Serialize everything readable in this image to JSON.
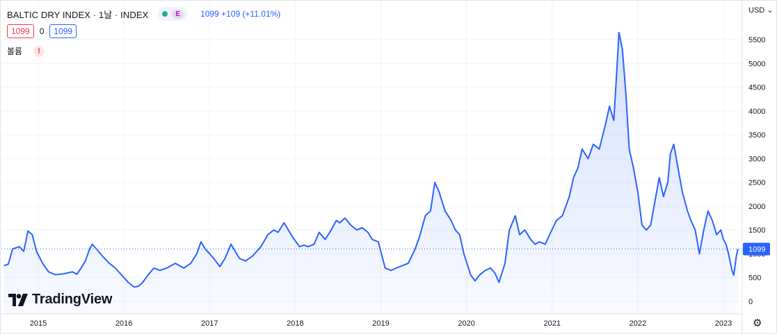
{
  "header": {
    "title": "BALTIC DRY INDEX · 1날 · INDEX",
    "badge_letter": "E",
    "price_info": "1099 +109 (+11.01%)"
  },
  "ohlc_row": {
    "left_box": "1099",
    "middle": "0",
    "right_box": "1099"
  },
  "volume_row": {
    "label": "볼륨",
    "warning": "!"
  },
  "axis": {
    "currency": "USD",
    "currency_caret": "⌄"
  },
  "settings_icon": "gear-icon",
  "brand": {
    "name": "TradingView",
    "icon": "tradingview-logo-icon"
  },
  "last_price_tag": "1099",
  "colors": {
    "line": "#2962ff",
    "fill": "#2962ff",
    "grid": "#f0f3fa",
    "tag": "#2962ff"
  },
  "chart_data": {
    "type": "area",
    "title": "BALTIC DRY INDEX",
    "ylim": [
      0,
      5800
    ],
    "yticks": [
      0,
      500,
      1000,
      1500,
      2000,
      2500,
      3000,
      3500,
      4000,
      4500,
      5000,
      5500
    ],
    "xticks": [
      "2015",
      "2016",
      "2017",
      "2018",
      "2019",
      "2020",
      "2021",
      "2022",
      "2023"
    ],
    "grid": true,
    "series": [
      {
        "values": [
          [
            2014.6,
            750
          ],
          [
            2014.65,
            780
          ],
          [
            2014.7,
            1100
          ],
          [
            2014.78,
            1150
          ],
          [
            2014.83,
            1050
          ],
          [
            2014.88,
            1480
          ],
          [
            2014.93,
            1400
          ],
          [
            2014.98,
            1050
          ],
          [
            2015.05,
            800
          ],
          [
            2015.12,
            620
          ],
          [
            2015.2,
            560
          ],
          [
            2015.3,
            580
          ],
          [
            2015.4,
            620
          ],
          [
            2015.45,
            570
          ],
          [
            2015.5,
            700
          ],
          [
            2015.55,
            850
          ],
          [
            2015.6,
            1100
          ],
          [
            2015.63,
            1200
          ],
          [
            2015.68,
            1100
          ],
          [
            2015.75,
            950
          ],
          [
            2015.83,
            800
          ],
          [
            2015.9,
            700
          ],
          [
            2015.97,
            560
          ],
          [
            2016.05,
            400
          ],
          [
            2016.12,
            300
          ],
          [
            2016.17,
            320
          ],
          [
            2016.22,
            400
          ],
          [
            2016.28,
            550
          ],
          [
            2016.35,
            700
          ],
          [
            2016.42,
            650
          ],
          [
            2016.5,
            700
          ],
          [
            2016.6,
            800
          ],
          [
            2016.7,
            700
          ],
          [
            2016.78,
            800
          ],
          [
            2016.85,
            1000
          ],
          [
            2016.9,
            1250
          ],
          [
            2016.95,
            1100
          ],
          [
            2017.05,
            900
          ],
          [
            2017.12,
            730
          ],
          [
            2017.18,
            900
          ],
          [
            2017.25,
            1200
          ],
          [
            2017.3,
            1050
          ],
          [
            2017.35,
            900
          ],
          [
            2017.42,
            850
          ],
          [
            2017.5,
            950
          ],
          [
            2017.6,
            1150
          ],
          [
            2017.68,
            1400
          ],
          [
            2017.75,
            1500
          ],
          [
            2017.8,
            1450
          ],
          [
            2017.87,
            1650
          ],
          [
            2017.92,
            1500
          ],
          [
            2017.97,
            1350
          ],
          [
            2018.05,
            1150
          ],
          [
            2018.1,
            1180
          ],
          [
            2018.15,
            1150
          ],
          [
            2018.22,
            1200
          ],
          [
            2018.28,
            1450
          ],
          [
            2018.35,
            1300
          ],
          [
            2018.42,
            1500
          ],
          [
            2018.48,
            1700
          ],
          [
            2018.52,
            1650
          ],
          [
            2018.58,
            1750
          ],
          [
            2018.65,
            1600
          ],
          [
            2018.72,
            1500
          ],
          [
            2018.78,
            1550
          ],
          [
            2018.85,
            1450
          ],
          [
            2018.9,
            1300
          ],
          [
            2018.97,
            1250
          ],
          [
            2019.05,
            700
          ],
          [
            2019.12,
            650
          ],
          [
            2019.18,
            700
          ],
          [
            2019.25,
            750
          ],
          [
            2019.32,
            800
          ],
          [
            2019.4,
            1100
          ],
          [
            2019.45,
            1350
          ],
          [
            2019.52,
            1800
          ],
          [
            2019.58,
            1900
          ],
          [
            2019.63,
            2500
          ],
          [
            2019.68,
            2300
          ],
          [
            2019.75,
            1900
          ],
          [
            2019.82,
            1700
          ],
          [
            2019.87,
            1500
          ],
          [
            2019.92,
            1400
          ],
          [
            2019.97,
            1000
          ],
          [
            2020.05,
            550
          ],
          [
            2020.1,
            430
          ],
          [
            2020.15,
            550
          ],
          [
            2020.22,
            650
          ],
          [
            2020.28,
            700
          ],
          [
            2020.33,
            600
          ],
          [
            2020.38,
            400
          ],
          [
            2020.45,
            800
          ],
          [
            2020.5,
            1500
          ],
          [
            2020.57,
            1800
          ],
          [
            2020.62,
            1400
          ],
          [
            2020.68,
            1500
          ],
          [
            2020.75,
            1300
          ],
          [
            2020.8,
            1200
          ],
          [
            2020.85,
            1250
          ],
          [
            2020.92,
            1200
          ],
          [
            2020.97,
            1400
          ],
          [
            2021.05,
            1700
          ],
          [
            2021.12,
            1800
          ],
          [
            2021.2,
            2200
          ],
          [
            2021.25,
            2600
          ],
          [
            2021.3,
            2800
          ],
          [
            2021.35,
            3200
          ],
          [
            2021.42,
            3000
          ],
          [
            2021.48,
            3300
          ],
          [
            2021.55,
            3200
          ],
          [
            2021.62,
            3700
          ],
          [
            2021.67,
            4100
          ],
          [
            2021.72,
            3800
          ],
          [
            2021.76,
            5000
          ],
          [
            2021.78,
            5650
          ],
          [
            2021.82,
            5300
          ],
          [
            2021.86,
            4400
          ],
          [
            2021.9,
            3200
          ],
          [
            2021.95,
            2800
          ],
          [
            2022.0,
            2300
          ],
          [
            2022.05,
            1600
          ],
          [
            2022.1,
            1500
          ],
          [
            2022.15,
            1600
          ],
          [
            2022.2,
            2100
          ],
          [
            2022.25,
            2600
          ],
          [
            2022.3,
            2200
          ],
          [
            2022.35,
            2500
          ],
          [
            2022.38,
            3100
          ],
          [
            2022.42,
            3300
          ],
          [
            2022.47,
            2800
          ],
          [
            2022.52,
            2300
          ],
          [
            2022.58,
            1900
          ],
          [
            2022.62,
            1700
          ],
          [
            2022.67,
            1500
          ],
          [
            2022.72,
            1000
          ],
          [
            2022.77,
            1500
          ],
          [
            2022.82,
            1900
          ],
          [
            2022.87,
            1700
          ],
          [
            2022.92,
            1400
          ],
          [
            2022.97,
            1500
          ],
          [
            2023.0,
            1300
          ],
          [
            2023.03,
            1200
          ],
          [
            2023.06,
            1000
          ],
          [
            2023.1,
            650
          ],
          [
            2023.12,
            550
          ],
          [
            2023.15,
            950
          ],
          [
            2023.17,
            1099
          ]
        ]
      }
    ]
  }
}
